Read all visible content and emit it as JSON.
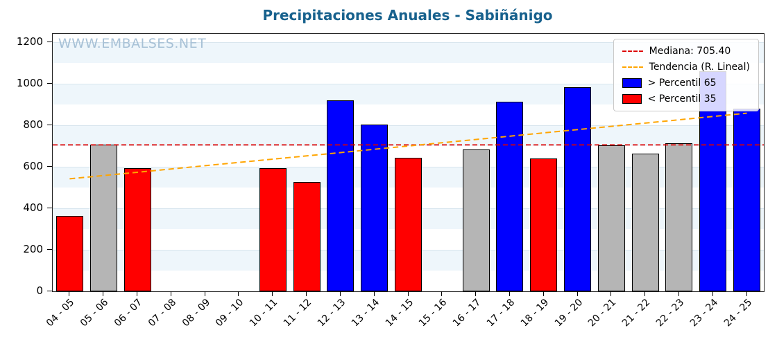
{
  "title": "Precipitaciones Anuales - Sabiñánigo",
  "watermark": "WWW.EMBALSES.NET",
  "legend": {
    "median_label": "Mediana: 705.40",
    "trend_label": "Tendencia (R. Lineal)",
    "above_label": "> Percentil 65",
    "below_label": "< Percentil 35"
  },
  "colors": {
    "above": "#0000ff",
    "below": "#ff0000",
    "neutral": "#b5b5b5",
    "median_line": "#dd0000",
    "trend_line": "#ffa500",
    "title": "#17618d",
    "watermark": "#a7c1d6"
  },
  "chart_data": {
    "type": "bar",
    "title": "Precipitaciones Anuales - Sabiñánigo",
    "categories": [
      "04 - 05",
      "05 - 06",
      "06 - 07",
      "07 - 08",
      "08 - 09",
      "09 - 10",
      "10 - 11",
      "11 - 12",
      "12 - 13",
      "13 - 14",
      "14 - 15",
      "15 - 16",
      "16 - 17",
      "17 - 18",
      "18 - 19",
      "19 - 20",
      "20 - 21",
      "21 - 22",
      "22 - 23",
      "23 - 24",
      "24 - 25"
    ],
    "values": [
      365,
      708,
      593,
      null,
      null,
      null,
      595,
      527,
      920,
      805,
      645,
      null,
      685,
      915,
      640,
      985,
      705,
      663,
      715,
      1060,
      880
    ],
    "bar_classes": [
      "below",
      "mid",
      "below",
      null,
      null,
      null,
      "below",
      "below",
      "above",
      "above",
      "below",
      null,
      "mid",
      "above",
      "below",
      "above",
      "mid",
      "mid",
      "mid",
      "above",
      "above"
    ],
    "median": 705.4,
    "trend_line": {
      "start_value": 542,
      "end_value": 858
    },
    "xlabel": "",
    "ylabel": "",
    "ylim": [
      0,
      1240
    ],
    "y_ticks": [
      0,
      200,
      400,
      600,
      800,
      1000,
      1200
    ],
    "grid": true,
    "legend_position": "upper right"
  }
}
